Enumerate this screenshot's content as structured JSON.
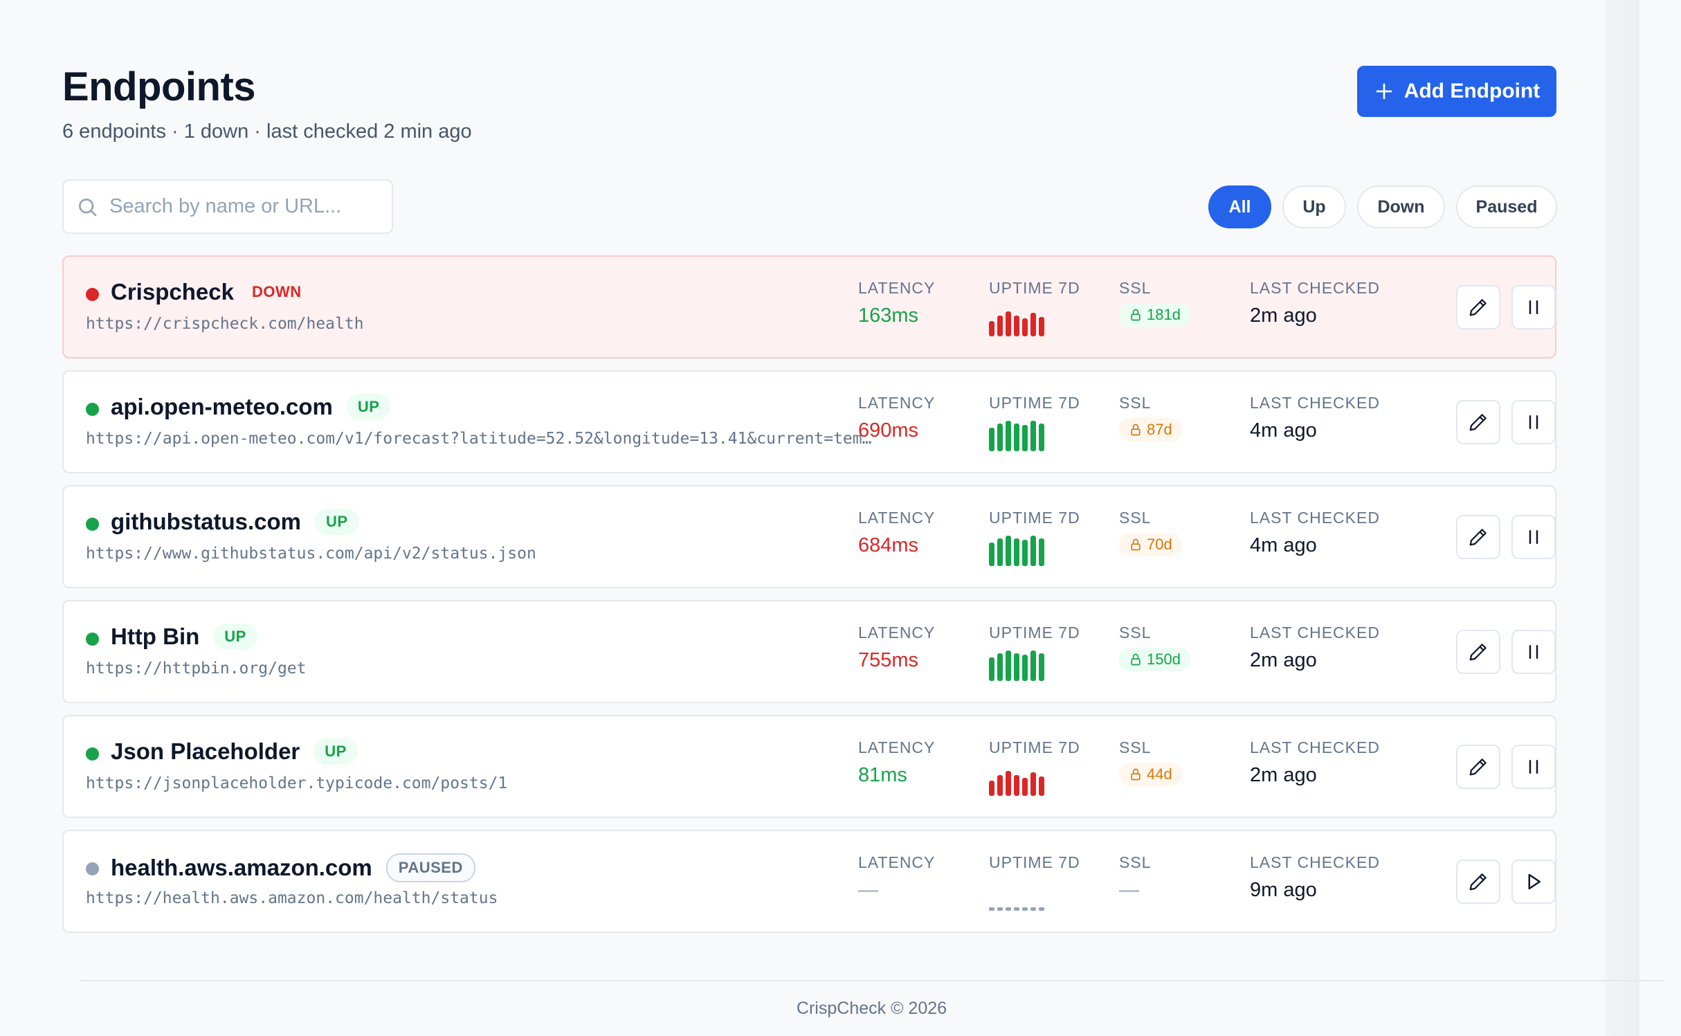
{
  "header": {
    "title": "Endpoints",
    "subtitle": "6 endpoints · 1 down · last checked 2 min ago",
    "add_button_label": "Add Endpoint"
  },
  "search": {
    "placeholder": "Search by name or URL...",
    "value": ""
  },
  "filters": [
    {
      "label": "All",
      "active": true
    },
    {
      "label": "Up",
      "active": false
    },
    {
      "label": "Down",
      "active": false
    },
    {
      "label": "Paused",
      "active": false
    }
  ],
  "column_labels": {
    "latency": "LATENCY",
    "uptime": "UPTIME 7D",
    "ssl": "SSL",
    "last_checked": "LAST CHECKED"
  },
  "endpoints": [
    {
      "name": "Crispcheck",
      "status": "DOWN",
      "url": "https://crispcheck.com/health",
      "latency": "163ms",
      "latency_state": "good",
      "uptime_days": [
        "down",
        "down",
        "down",
        "down",
        "down",
        "down",
        "down"
      ],
      "ssl": "181d",
      "ssl_state": "ok",
      "last_checked": "2m ago",
      "action_icon": "pause-icon"
    },
    {
      "name": "api.open-meteo.com",
      "status": "UP",
      "url": "https://api.open-meteo.com/v1/forecast?latitude=52.52&longitude=13.41&current=tem…",
      "latency": "690ms",
      "latency_state": "bad",
      "uptime_days": [
        "up",
        "up",
        "up",
        "up",
        "up",
        "up",
        "up"
      ],
      "ssl": "87d",
      "ssl_state": "warn",
      "last_checked": "4m ago",
      "action_icon": "pause-icon"
    },
    {
      "name": "githubstatus.com",
      "status": "UP",
      "url": "https://www.githubstatus.com/api/v2/status.json",
      "latency": "684ms",
      "latency_state": "bad",
      "uptime_days": [
        "up",
        "up",
        "up",
        "up",
        "up",
        "up",
        "up"
      ],
      "ssl": "70d",
      "ssl_state": "warn",
      "last_checked": "4m ago",
      "action_icon": "pause-icon"
    },
    {
      "name": "Http Bin",
      "status": "UP",
      "url": "https://httpbin.org/get",
      "latency": "755ms",
      "latency_state": "bad",
      "uptime_days": [
        "up",
        "up",
        "up",
        "up",
        "up",
        "up",
        "up"
      ],
      "ssl": "150d",
      "ssl_state": "ok",
      "last_checked": "2m ago",
      "action_icon": "pause-icon"
    },
    {
      "name": "Json Placeholder",
      "status": "UP",
      "url": "https://jsonplaceholder.typicode.com/posts/1",
      "latency": "81ms",
      "latency_state": "good",
      "uptime_days": [
        "down",
        "down",
        "down",
        "down",
        "down",
        "down",
        "down"
      ],
      "ssl": "44d",
      "ssl_state": "warn",
      "last_checked": "2m ago",
      "action_icon": "pause-icon"
    },
    {
      "name": "health.aws.amazon.com",
      "status": "PAUSED",
      "url": "https://health.aws.amazon.com/health/status",
      "latency": "—",
      "latency_state": "none",
      "uptime_days": [
        "none",
        "none",
        "none",
        "none",
        "none",
        "none",
        "none"
      ],
      "ssl": "—",
      "ssl_state": "none",
      "last_checked": "9m ago",
      "action_icon": "play-icon"
    }
  ],
  "footer": {
    "text": "CrispCheck © 2026"
  },
  "colors": {
    "accent": "#2563eb",
    "up": "#16a34a",
    "down": "#dc2626",
    "paused": "#94a3b8",
    "ssl_warn": "#d97706",
    "down_row_bg": "#fef1f1"
  }
}
